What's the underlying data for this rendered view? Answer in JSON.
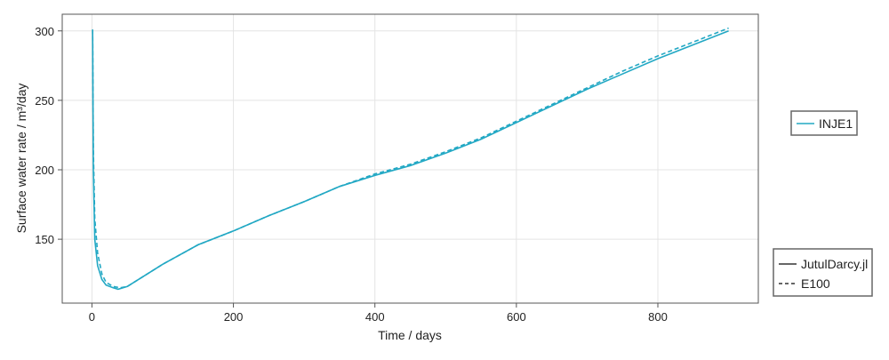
{
  "chart_data": {
    "type": "line",
    "xlabel": "Time / days",
    "ylabel": "Surface water rate / m³/day",
    "xlim": [
      -42,
      942
    ],
    "ylim": [
      104,
      312
    ],
    "xticks": [
      0,
      200,
      400,
      600,
      800
    ],
    "yticks": [
      150,
      200,
      250,
      300
    ],
    "grid": true,
    "color": "#22a8c4",
    "legend_wells": {
      "placement": "right",
      "entries": [
        "INJE1"
      ]
    },
    "legend_styles": {
      "placement": "bottom-right",
      "entries": [
        {
          "label": "JutulDarcy.jl",
          "style": "solid"
        },
        {
          "label": "E100",
          "style": "dashed"
        }
      ]
    },
    "series": [
      {
        "name": "JutulDarcy.jl",
        "well": "INJE1",
        "style": "solid",
        "x": [
          1,
          2,
          4,
          8,
          14,
          20,
          30,
          37,
          50,
          75,
          100,
          150,
          200,
          250,
          300,
          350,
          400,
          450,
          500,
          550,
          600,
          650,
          700,
          750,
          800,
          850,
          900
        ],
        "y": [
          301,
          200,
          150,
          131,
          121,
          117,
          115,
          114,
          116,
          124,
          132,
          146,
          156,
          167,
          177,
          188,
          196,
          203,
          212,
          222,
          234,
          246,
          258,
          269,
          280,
          290,
          300
        ]
      },
      {
        "name": "E100",
        "well": "INJE1",
        "style": "dashed",
        "x": [
          1,
          2,
          4,
          8,
          14,
          20,
          30,
          40,
          50,
          75,
          100,
          150,
          200,
          250,
          300,
          350,
          400,
          450,
          500,
          550,
          600,
          650,
          700,
          750,
          800,
          850,
          900
        ],
        "y": [
          301,
          215,
          165,
          140,
          125,
          119,
          116,
          115,
          116,
          124,
          132,
          146,
          156,
          167,
          177,
          188,
          197,
          204,
          213,
          223,
          235,
          247,
          259,
          271,
          282,
          292,
          302
        ]
      }
    ]
  }
}
